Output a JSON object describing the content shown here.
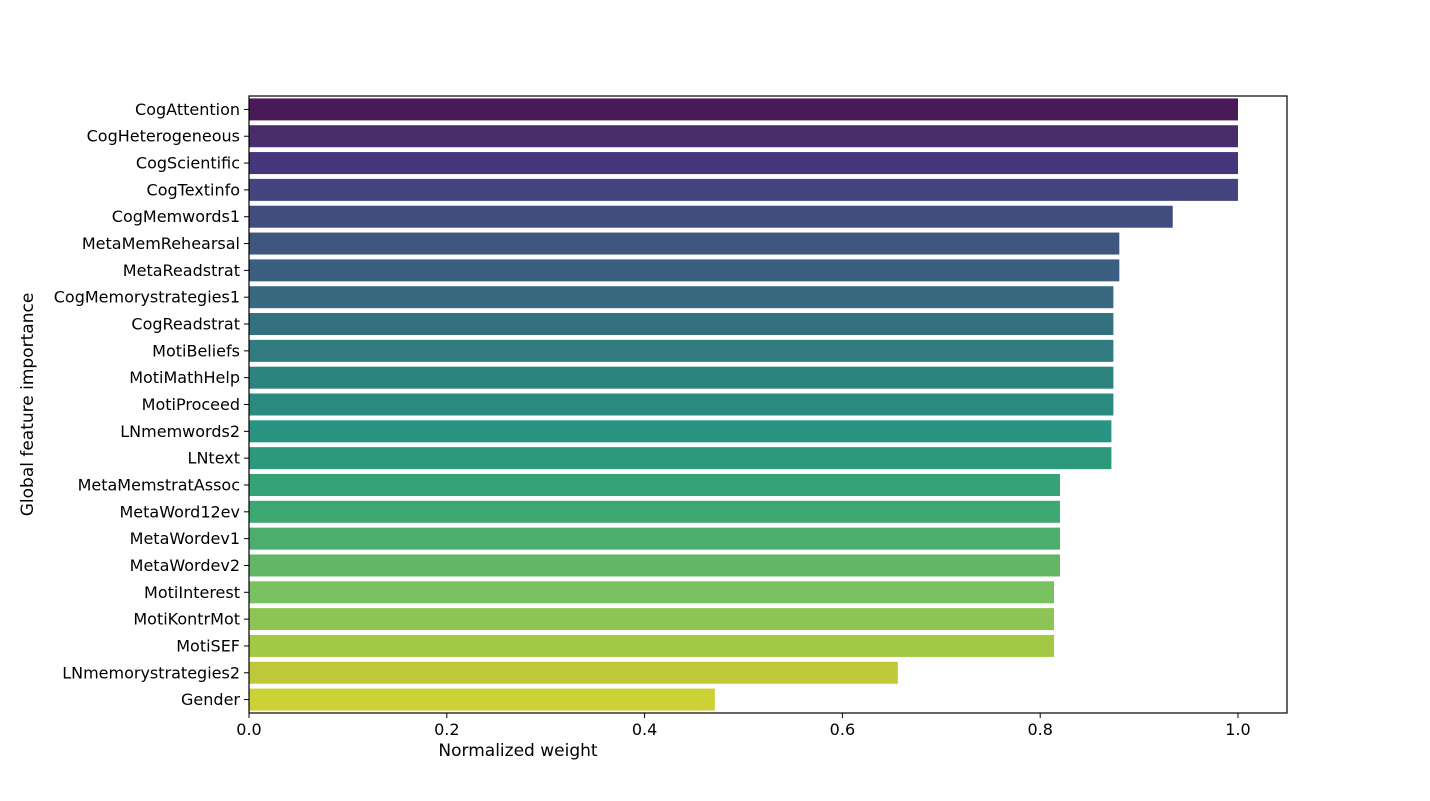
{
  "chart_data": {
    "type": "bar",
    "orientation": "horizontal",
    "xlabel": "Normalized weight",
    "ylabel": "Global feature importance",
    "xlim": [
      0.0,
      1.05
    ],
    "xticks": [
      "0.0",
      "0.2",
      "0.4",
      "0.6",
      "0.8",
      "1.0"
    ],
    "grid": false,
    "colormap": "viridis",
    "categories": [
      "CogAttention",
      "CogHeterogeneous",
      "CogScientific",
      "CogTextinfo",
      "CogMemwords1",
      "MetaMemRehearsal",
      "MetaReadstrat",
      "CogMemorystrategies1",
      "CogReadstrat",
      "MotiBeliefs",
      "MotiMathHelp",
      "MotiProceed",
      "LNmemwords2",
      "LNtext",
      "MetaMemstratAssoc",
      "MetaWord12ev",
      "MetaWordev1",
      "MetaWordev2",
      "MotiInterest",
      "MotiKontrMot",
      "MotiSEF",
      "LNmemorystrategies2",
      "Gender"
    ],
    "values": [
      1.0,
      1.0,
      1.0,
      1.0,
      0.934,
      0.88,
      0.88,
      0.874,
      0.874,
      0.874,
      0.874,
      0.874,
      0.872,
      0.872,
      0.82,
      0.82,
      0.82,
      0.82,
      0.814,
      0.814,
      0.814,
      0.656,
      0.471
    ],
    "colors": [
      "#481a58",
      "#482c6b",
      "#46377a",
      "#44457f",
      "#424d7f",
      "#40567f",
      "#3c5e80",
      "#386980",
      "#34717e",
      "#327b81",
      "#2d847e",
      "#2b8a7e",
      "#299481",
      "#2c987c",
      "#36a377",
      "#3ea873",
      "#4dad6c",
      "#63b666",
      "#79c060",
      "#8cc553",
      "#a3c843",
      "#bfc83a",
      "#ccd135"
    ]
  }
}
